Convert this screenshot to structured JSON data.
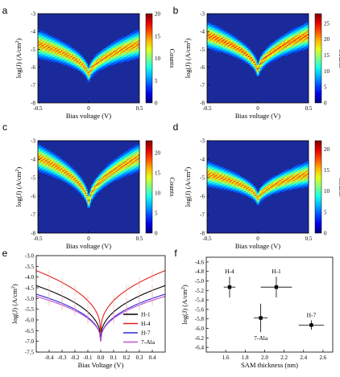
{
  "colorbar_label": "Counts",
  "colors": {
    "heatmap_background": "#1a2a9a",
    "h1": "#000000",
    "h4": "#e0201b",
    "h7": "#2b2bd6",
    "ala7": "#c050d0",
    "errorbar": "#f0a8a8"
  },
  "chart_data": [
    {
      "panel": "a",
      "type": "heatmap",
      "xlabel": "Bias voltage (V)",
      "ylabel": "log(J) (A/cm²)",
      "xlim": [
        -0.5,
        0.5
      ],
      "ylim": [
        -8,
        -3
      ],
      "xticks": [
        "-0.5",
        "0",
        "0.5"
      ],
      "yticks": [
        "-3",
        "-4",
        "-5",
        "-6",
        "-7",
        "-8"
      ],
      "colorbar_ticks": [
        "0",
        "5",
        "10",
        "15",
        "20"
      ],
      "colorbar_max": 20,
      "band": {
        "edge_center": -4.7,
        "dip_center": -6.6,
        "width": 1.4,
        "peak_intensity": 0.85
      }
    },
    {
      "panel": "b",
      "type": "heatmap",
      "xlabel": "Bias voltage (V)",
      "ylabel": "log(J) (A/cm²)",
      "xlim": [
        -0.5,
        0.5
      ],
      "ylim": [
        -8,
        -3
      ],
      "xticks": [
        "-0.5",
        "0",
        "0.5"
      ],
      "yticks": [
        "-3",
        "-4",
        "-5",
        "-6",
        "-7",
        "-8"
      ],
      "colorbar_ticks": [
        "0",
        "5",
        "10",
        "15",
        "20",
        "25"
      ],
      "colorbar_max": 28,
      "band": {
        "edge_center": -4.2,
        "dip_center": -6.4,
        "width": 1.3,
        "peak_intensity": 0.9
      }
    },
    {
      "panel": "c",
      "type": "heatmap",
      "xlabel": "Bias voltage (V)",
      "ylabel": "log(J) (A/cm²)",
      "xlim": [
        -0.5,
        0.5
      ],
      "ylim": [
        -8,
        -3
      ],
      "xticks": [
        "-0.5",
        "0",
        "0.5"
      ],
      "yticks": [
        "-3",
        "-4",
        "-5",
        "-6",
        "-7",
        "-8"
      ],
      "colorbar_ticks": [
        "0",
        "5",
        "10",
        "15",
        "20"
      ],
      "colorbar_max": 23,
      "band": {
        "edge_center": -3.9,
        "dip_center": -6.6,
        "width": 1.3,
        "peak_intensity": 0.85
      }
    },
    {
      "panel": "d",
      "type": "heatmap",
      "xlabel": "Bias voltage (V)",
      "ylabel": "log(J) (A/cm²)",
      "xlim": [
        -0.5,
        0.5
      ],
      "ylim": [
        -8,
        -3
      ],
      "xticks": [
        "-0.5",
        "0",
        "0.5"
      ],
      "yticks": [
        "-3",
        "-4",
        "-5",
        "-6",
        "-7",
        "-8"
      ],
      "colorbar_ticks": [
        "0",
        "5",
        "10",
        "15",
        "20"
      ],
      "colorbar_max": 22,
      "band": {
        "edge_center": -4.8,
        "dip_center": -6.3,
        "width": 1.2,
        "peak_intensity": 0.85
      }
    },
    {
      "panel": "e",
      "type": "line",
      "xlabel": "Bias Voltage (V)",
      "ylabel": "log(J) (A/cm²)",
      "xlim": [
        -0.5,
        0.5
      ],
      "ylim": [
        -7.5,
        -3.0
      ],
      "xticks": [
        -0.4,
        -0.3,
        -0.2,
        -0.1,
        0.0,
        0.1,
        0.2,
        0.3,
        0.4
      ],
      "yticks": [
        -3.0,
        -3.5,
        -4.0,
        -4.5,
        -5.0,
        -5.5,
        -6.0,
        -6.5,
        -7.0,
        -7.5
      ],
      "legend_position": "bottom-right",
      "series": [
        {
          "name": "H-1",
          "color_key": "h1",
          "edge_value": -4.4,
          "min_value": -6.9
        },
        {
          "name": "H-4",
          "color_key": "h4",
          "edge_value": -3.7,
          "min_value": -6.55
        },
        {
          "name": "H-7",
          "color_key": "h7",
          "edge_value": -4.8,
          "min_value": -7.0
        },
        {
          "name": "7-Ala",
          "color_key": "ala7",
          "edge_value": -4.9,
          "min_value": -7.0
        }
      ]
    },
    {
      "panel": "f",
      "type": "scatter",
      "xlabel": "SAM thickness (nm)",
      "ylabel": "log(J) (A/cm²)",
      "xlim": [
        1.4,
        2.7
      ],
      "ylim": [
        -6.5,
        -4.5
      ],
      "xticks": [
        1.6,
        1.8,
        2.0,
        2.2,
        2.4,
        2.6
      ],
      "yticks": [
        -4.6,
        -4.8,
        -5.0,
        -5.2,
        -5.4,
        -5.6,
        -5.8,
        -6.0,
        -6.2,
        -6.4
      ],
      "points": [
        {
          "label": "H-4",
          "x": 1.64,
          "y": -5.13,
          "xerr": 0.06,
          "yerr": 0.22,
          "label_pos": "above"
        },
        {
          "label": "H-1",
          "x": 2.12,
          "y": -5.13,
          "xerr": 0.16,
          "yerr": 0.22,
          "label_pos": "above"
        },
        {
          "label": "7-Ala",
          "x": 1.96,
          "y": -5.78,
          "xerr": 0.07,
          "yerr": 0.3,
          "label_pos": "below"
        },
        {
          "label": "H-7",
          "x": 2.48,
          "y": -5.93,
          "xerr": 0.13,
          "yerr": 0.1,
          "label_pos": "above"
        }
      ]
    }
  ]
}
